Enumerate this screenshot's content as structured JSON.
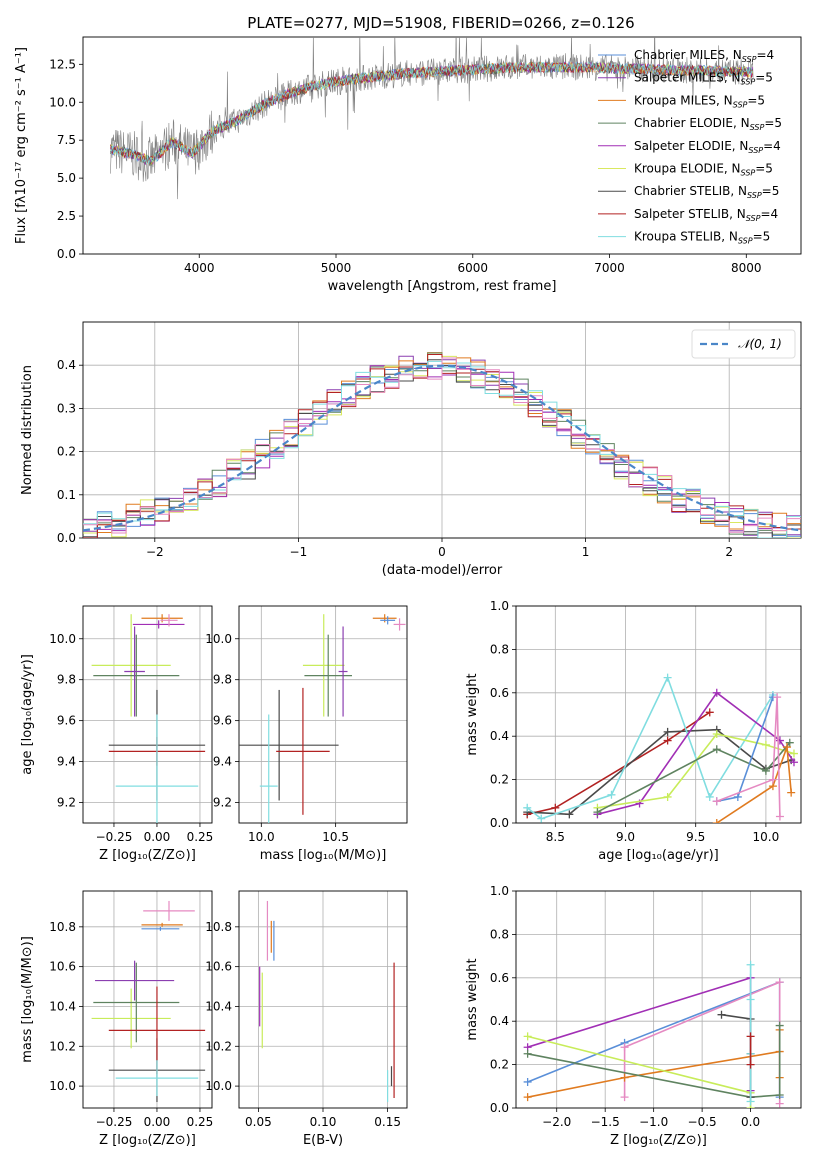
{
  "figure_title": "PLATE=0277, MJD=51908, FIBERID=0266, z=0.126",
  "colors": {
    "cm": "#5a8fd8",
    "sm": "#8b3fb0",
    "km": "#e07b20",
    "ce": "#5f8360",
    "se": "#a12fb5",
    "ke": "#d9e860",
    "cs": "#4a4a4a",
    "ss": "#b22222",
    "ks": "#80dde0",
    "data": "#808080",
    "pink": "#e58ac2",
    "lime": "#c8ec5a",
    "dark": "#555555",
    "grid": "#b0b0b0",
    "gauss": "#4a86c8"
  },
  "chart_data": [
    {
      "id": "spectrum",
      "type": "line",
      "title": "PLATE=0277, MJD=51908, FIBERID=0266, z=0.126",
      "xlabel": "wavelength [Angstrom, rest frame]",
      "ylabel": "Flux [fλ10⁻¹⁷ erg cm⁻² s⁻¹ A⁻¹]",
      "xlim": [
        3150,
        8400
      ],
      "ylim": [
        0,
        14.3
      ],
      "xticks": [
        "4000",
        "5000",
        "6000",
        "7000",
        "8000"
      ],
      "yticks": [
        "0.0",
        "2.5",
        "5.0",
        "7.5",
        "10.0",
        "12.5"
      ],
      "grid": false,
      "legend_position": "right",
      "continuum": {
        "x": [
          3350,
          3500,
          3650,
          3800,
          3950,
          4100,
          4300,
          4500,
          4700,
          4900,
          5100,
          5300,
          5500,
          5700,
          5900,
          6100,
          6300,
          6500,
          6700,
          6900,
          7100,
          7300,
          7500,
          7700,
          7900,
          8050
        ],
        "y": [
          6.9,
          6.6,
          6.1,
          7.4,
          6.6,
          8.1,
          8.9,
          10.0,
          10.7,
          11.2,
          11.5,
          11.7,
          11.9,
          12.0,
          12.1,
          12.2,
          12.3,
          12.3,
          12.3,
          12.3,
          12.2,
          12.2,
          12.1,
          12.1,
          12.0,
          12.0
        ]
      },
      "series": [
        {
          "name": "Chabrier MILES, N_SSP=4",
          "color_key": "cm"
        },
        {
          "name": "Salpeter MILES, N_SSP=5",
          "color_key": "sm"
        },
        {
          "name": "Kroupa MILES, N_SSP=5",
          "color_key": "km"
        },
        {
          "name": "Chabrier ELODIE, N_SSP=5",
          "color_key": "ce"
        },
        {
          "name": "Salpeter ELODIE, N_SSP=4",
          "color_key": "se"
        },
        {
          "name": "Kroupa ELODIE, N_SSP=5",
          "color_key": "ke"
        },
        {
          "name": "Chabrier STELIB, N_SSP=5",
          "color_key": "cs"
        },
        {
          "name": "Salpeter STELIB, N_SSP=4",
          "color_key": "ss"
        },
        {
          "name": "Kroupa STELIB, N_SSP=5",
          "color_key": "ks"
        }
      ],
      "legend": [
        {
          "label": "Chabrier MILES, N",
          "sub": "SSP",
          "tail": "=4",
          "color_key": "cm"
        },
        {
          "label": "Salpeter MILES, N",
          "sub": "SSP",
          "tail": "=5",
          "color_key": "sm"
        },
        {
          "label": "Kroupa MILES, N",
          "sub": "SSP",
          "tail": "=5",
          "color_key": "km"
        },
        {
          "label": "Chabrier ELODIE, N",
          "sub": "SSP",
          "tail": "=5",
          "color_key": "ce"
        },
        {
          "label": "Salpeter ELODIE, N",
          "sub": "SSP",
          "tail": "=4",
          "color_key": "se"
        },
        {
          "label": "Kroupa ELODIE, N",
          "sub": "SSP",
          "tail": "=5",
          "color_key": "ke"
        },
        {
          "label": "Chabrier STELIB, N",
          "sub": "SSP",
          "tail": "=5",
          "color_key": "cs"
        },
        {
          "label": "Salpeter STELIB, N",
          "sub": "SSP",
          "tail": "=4",
          "color_key": "ss"
        },
        {
          "label": "Kroupa STELIB, N",
          "sub": "SSP",
          "tail": "=5",
          "color_key": "ks"
        }
      ]
    },
    {
      "id": "residuals",
      "type": "line",
      "xlabel": "(data-model)/error",
      "ylabel": "Normed distribution",
      "xlim": [
        -2.5,
        2.5
      ],
      "ylim": [
        0,
        0.5
      ],
      "xticks": [
        "−2",
        "−1",
        "0",
        "1",
        "2"
      ],
      "yticks": [
        "0.0",
        "0.1",
        "0.2",
        "0.3",
        "0.4"
      ],
      "grid": true,
      "legend_position": "top-right",
      "gauss_label": "𝒩(0, 1)",
      "bins": {
        "start": -2.5,
        "width": 0.1,
        "count": 50
      }
    },
    {
      "id": "age-vs-Z",
      "type": "scatter",
      "xlabel": "Z [log₁₀(Z/Z⊙)]",
      "ylabel": "age  [log₁₀(age/yr)]",
      "xlim": [
        -0.43,
        0.32
      ],
      "ylim": [
        9.1,
        10.16
      ],
      "xticks": [
        "−0.25",
        "0.00",
        "0.25"
      ],
      "yticks": [
        "9.2",
        "9.4",
        "9.6",
        "9.8",
        "10.0"
      ],
      "grid": true,
      "points": [
        {
          "x": -0.15,
          "y": 9.87,
          "xerr": 0.23,
          "yerr": 0.25,
          "color_key": "lime"
        },
        {
          "x": -0.12,
          "y": 9.82,
          "xerr": 0.25,
          "yerr": 0.2,
          "color_key": "ce"
        },
        {
          "x": -0.13,
          "y": 9.84,
          "xerr": 0.06,
          "yerr": 0.22,
          "color_key": "sm"
        },
        {
          "x": 0.03,
          "y": 10.1,
          "xerr": 0.12,
          "yerr": 0.02,
          "color_key": "km"
        },
        {
          "x": 0.01,
          "y": 10.07,
          "xerr": 0.15,
          "yerr": 0.02,
          "color_key": "se"
        },
        {
          "x": 0.07,
          "y": 10.09,
          "xerr": 0.05,
          "yerr": 0.03,
          "color_key": "pink"
        },
        {
          "x": 0.0,
          "y": 9.48,
          "xerr": 0.28,
          "yerr": 0.27,
          "color_key": "cs"
        },
        {
          "x": 0.0,
          "y": 9.45,
          "xerr": 0.28,
          "yerr": 0.07,
          "color_key": "ss"
        },
        {
          "x": 0.0,
          "y": 9.28,
          "xerr": 0.24,
          "yerr": 0.35,
          "color_key": "ks"
        }
      ]
    },
    {
      "id": "age-vs-mass",
      "type": "scatter",
      "xlabel": "mass [log₁₀(M/M⊙)]",
      "ylabel": "",
      "xlim": [
        9.85,
        10.98
      ],
      "ylim": [
        9.1,
        10.16
      ],
      "xticks": [
        "10.0",
        "10.5"
      ],
      "yticks": [
        "9.2",
        "9.4",
        "9.6",
        "9.8",
        "10.0"
      ],
      "grid": true,
      "points": [
        {
          "x": 10.42,
          "y": 9.87,
          "xerr": 0.14,
          "yerr": 0.25,
          "color_key": "lime"
        },
        {
          "x": 10.45,
          "y": 9.82,
          "xerr": 0.16,
          "yerr": 0.2,
          "color_key": "ce"
        },
        {
          "x": 10.55,
          "y": 9.84,
          "xerr": 0.03,
          "yerr": 0.22,
          "color_key": "sm"
        },
        {
          "x": 10.83,
          "y": 10.1,
          "xerr": 0.08,
          "yerr": 0.02,
          "color_key": "km"
        },
        {
          "x": 10.85,
          "y": 10.09,
          "xerr": 0.05,
          "yerr": 0.02,
          "color_key": "cm"
        },
        {
          "x": 10.93,
          "y": 10.07,
          "xerr": 0.04,
          "yerr": 0.03,
          "color_key": "pink"
        },
        {
          "x": 10.12,
          "y": 9.48,
          "xerr": 0.4,
          "yerr": 0.27,
          "color_key": "cs"
        },
        {
          "x": 10.28,
          "y": 9.45,
          "xerr": 0.18,
          "yerr": 0.31,
          "color_key": "ss"
        },
        {
          "x": 10.05,
          "y": 9.28,
          "xerr": 0.06,
          "yerr": 0.35,
          "color_key": "ks"
        }
      ]
    },
    {
      "id": "weight-vs-age",
      "type": "line",
      "xlabel": "age  [log₁₀(age/yr)]",
      "ylabel": "mass weight",
      "xlim": [
        8.22,
        10.25
      ],
      "ylim": [
        0,
        1
      ],
      "xticks": [
        "8.5",
        "9.0",
        "9.5",
        "10.0"
      ],
      "yticks": [
        "0.0",
        "0.2",
        "0.4",
        "0.6",
        "0.8",
        "1.0"
      ],
      "grid": true,
      "series": [
        {
          "color_key": "ss",
          "x": [
            8.3,
            8.5,
            9.3,
            9.6
          ],
          "y": [
            0.04,
            0.07,
            0.38,
            0.51
          ]
        },
        {
          "color_key": "cs",
          "x": [
            8.3,
            8.6,
            9.3,
            9.65,
            10.0,
            10.18
          ],
          "y": [
            0.05,
            0.04,
            0.42,
            0.43,
            0.25,
            0.29
          ]
        },
        {
          "color_key": "ks",
          "x": [
            8.3,
            8.4,
            8.9,
            9.3,
            9.6,
            10.05
          ],
          "y": [
            0.07,
            0.02,
            0.13,
            0.67,
            0.12,
            0.59
          ]
        },
        {
          "color_key": "se",
          "x": [
            8.8,
            9.1,
            9.65,
            10.1,
            10.2
          ],
          "y": [
            0.04,
            0.09,
            0.6,
            0.38,
            0.28
          ]
        },
        {
          "color_key": "lime",
          "x": [
            8.8,
            9.3,
            9.65,
            10.0,
            10.2
          ],
          "y": [
            0.07,
            0.12,
            0.41,
            0.36,
            0.32
          ]
        },
        {
          "color_key": "ce",
          "x": [
            8.8,
            9.65,
            10.0,
            10.17
          ],
          "y": [
            0.05,
            0.34,
            0.24,
            0.37
          ]
        },
        {
          "color_key": "cm",
          "x": [
            9.65,
            9.8,
            10.05
          ],
          "y": [
            0.1,
            0.12,
            0.58
          ]
        },
        {
          "color_key": "km",
          "x": [
            9.65,
            10.05,
            10.15,
            10.18
          ],
          "y": [
            0.0,
            0.17,
            0.35,
            0.14
          ]
        },
        {
          "color_key": "pink",
          "x": [
            9.65,
            10.05,
            10.08,
            10.1
          ],
          "y": [
            0.1,
            0.2,
            0.58,
            0.03
          ]
        }
      ]
    },
    {
      "id": "mass-vs-Z",
      "type": "scatter",
      "xlabel": "Z [log₁₀(Z/Z⊙)]",
      "ylabel": "mass [log₁₀(M/M⊙)]",
      "xlim": [
        -0.43,
        0.32
      ],
      "ylim": [
        9.89,
        10.98
      ],
      "xticks": [
        "−0.25",
        "0.00",
        "0.25"
      ],
      "yticks": [
        "10.0",
        "10.2",
        "10.4",
        "10.6",
        "10.8"
      ],
      "grid": true,
      "points": [
        {
          "x": -0.15,
          "y": 10.34,
          "xerr": 0.23,
          "yerr": 0.15,
          "color_key": "lime"
        },
        {
          "x": -0.12,
          "y": 10.42,
          "xerr": 0.25,
          "yerr": 0.2,
          "color_key": "ce"
        },
        {
          "x": -0.13,
          "y": 10.53,
          "xerr": 0.23,
          "yerr": 0.1,
          "color_key": "sm"
        },
        {
          "x": 0.03,
          "y": 10.81,
          "xerr": 0.12,
          "yerr": 0.01,
          "color_key": "km"
        },
        {
          "x": 0.02,
          "y": 10.79,
          "xerr": 0.11,
          "yerr": 0.01,
          "color_key": "cm"
        },
        {
          "x": 0.07,
          "y": 10.88,
          "xerr": 0.15,
          "yerr": 0.05,
          "color_key": "pink"
        },
        {
          "x": 0.0,
          "y": 10.08,
          "xerr": 0.28,
          "yerr": 0.16,
          "color_key": "cs"
        },
        {
          "x": 0.0,
          "y": 10.28,
          "xerr": 0.28,
          "yerr": 0.22,
          "color_key": "ss"
        },
        {
          "x": 0.0,
          "y": 10.04,
          "xerr": 0.24,
          "yerr": 0.09,
          "color_key": "ks"
        }
      ]
    },
    {
      "id": "mass-vs-ebv",
      "type": "scatter",
      "xlabel": "E(B-V)",
      "ylabel": "",
      "xlim": [
        0.035,
        0.165
      ],
      "ylim": [
        9.89,
        10.98
      ],
      "xticks": [
        "0.05",
        "0.10",
        "0.15"
      ],
      "yticks": [
        "10.0",
        "10.2",
        "10.4",
        "10.6",
        "10.8"
      ],
      "grid": true,
      "points": [
        {
          "x": 0.053,
          "y": 10.38,
          "xerr": 0,
          "yerr": 0.19,
          "color_key": "lime"
        },
        {
          "x": 0.051,
          "y": 10.45,
          "xerr": 0,
          "yerr": 0.15,
          "color_key": "se"
        },
        {
          "x": 0.057,
          "y": 10.78,
          "xerr": 0,
          "yerr": 0.15,
          "color_key": "pink"
        },
        {
          "x": 0.06,
          "y": 10.75,
          "xerr": 0,
          "yerr": 0.08,
          "color_key": "km"
        },
        {
          "x": 0.062,
          "y": 10.73,
          "xerr": 0,
          "yerr": 0.1,
          "color_key": "cm"
        },
        {
          "x": 0.15,
          "y": 10.0,
          "xerr": 0,
          "yerr": 0.08,
          "color_key": "ks"
        },
        {
          "x": 0.155,
          "y": 10.28,
          "xerr": 0,
          "yerr": 0.34,
          "color_key": "ss"
        },
        {
          "x": 0.153,
          "y": 10.05,
          "xerr": 0,
          "yerr": 0.05,
          "color_key": "cs"
        }
      ]
    },
    {
      "id": "weight-vs-Z",
      "type": "line",
      "xlabel": "Z [log₁₀(Z/Z⊙)]",
      "ylabel": "mass weight",
      "xlim": [
        -2.42,
        0.52
      ],
      "ylim": [
        0,
        1
      ],
      "xticks": [
        "−2.0",
        "−1.5",
        "−1.0",
        "−0.5",
        "0.0"
      ],
      "yticks": [
        "0.0",
        "0.2",
        "0.4",
        "0.6",
        "0.8",
        "1.0"
      ],
      "grid": true,
      "series": [
        {
          "color_key": "se",
          "x": [
            -2.3,
            0.0,
            0.0
          ],
          "y": [
            0.28,
            0.6,
            0.08
          ]
        },
        {
          "color_key": "cm",
          "x": [
            -2.3,
            -1.3,
            0.3,
            0.3
          ],
          "y": [
            0.12,
            0.3,
            0.58,
            0.05
          ]
        },
        {
          "color_key": "pink",
          "x": [
            -1.3,
            -1.3,
            0.3,
            0.3
          ],
          "y": [
            0.05,
            0.28,
            0.58,
            0.02
          ]
        },
        {
          "color_key": "km",
          "x": [
            -2.3,
            -1.3,
            0.3,
            0.3,
            0.3
          ],
          "y": [
            0.05,
            0.14,
            0.26,
            0.36,
            0.14
          ]
        },
        {
          "color_key": "lime",
          "x": [
            -2.3,
            0.0,
            0.0
          ],
          "y": [
            0.33,
            0.07,
            0.0
          ]
        },
        {
          "color_key": "ce",
          "x": [
            -2.3,
            0.0,
            0.3,
            0.3
          ],
          "y": [
            0.25,
            0.05,
            0.06,
            0.38
          ]
        },
        {
          "color_key": "cs",
          "x": [
            -0.3,
            0.0,
            0.0,
            0.0
          ],
          "y": [
            0.43,
            0.41,
            0.25,
            0.05
          ]
        },
        {
          "color_key": "ks",
          "x": [
            0.0,
            0.0,
            0.0,
            0.0
          ],
          "y": [
            0.66,
            0.5,
            0.25,
            0.03
          ]
        },
        {
          "color_key": "ss",
          "x": [
            0.0,
            0.0
          ],
          "y": [
            0.33,
            0.2
          ]
        }
      ]
    }
  ]
}
